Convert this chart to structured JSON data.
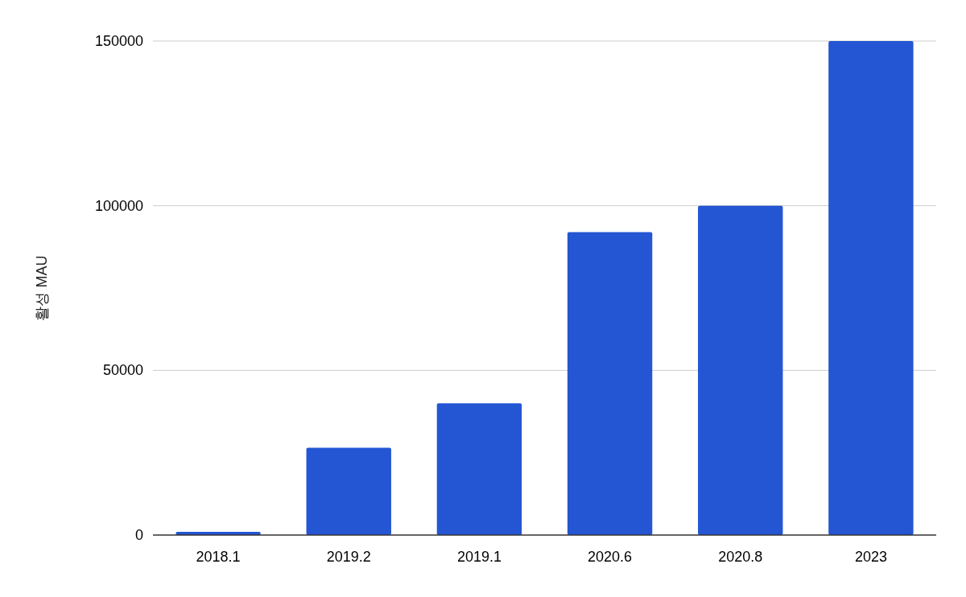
{
  "chart_data": {
    "type": "bar",
    "ylabel": "활성 MAU",
    "categories": [
      "2018.1",
      "2019.2",
      "2019.1",
      "2020.6",
      "2020.8",
      "2023"
    ],
    "values": [
      1000,
      26500,
      40000,
      92000,
      100000,
      150000
    ],
    "color": "#2456d3",
    "ylim": [
      0,
      150000
    ],
    "yticks": [
      0,
      50000,
      100000,
      150000
    ],
    "grid": "y"
  }
}
